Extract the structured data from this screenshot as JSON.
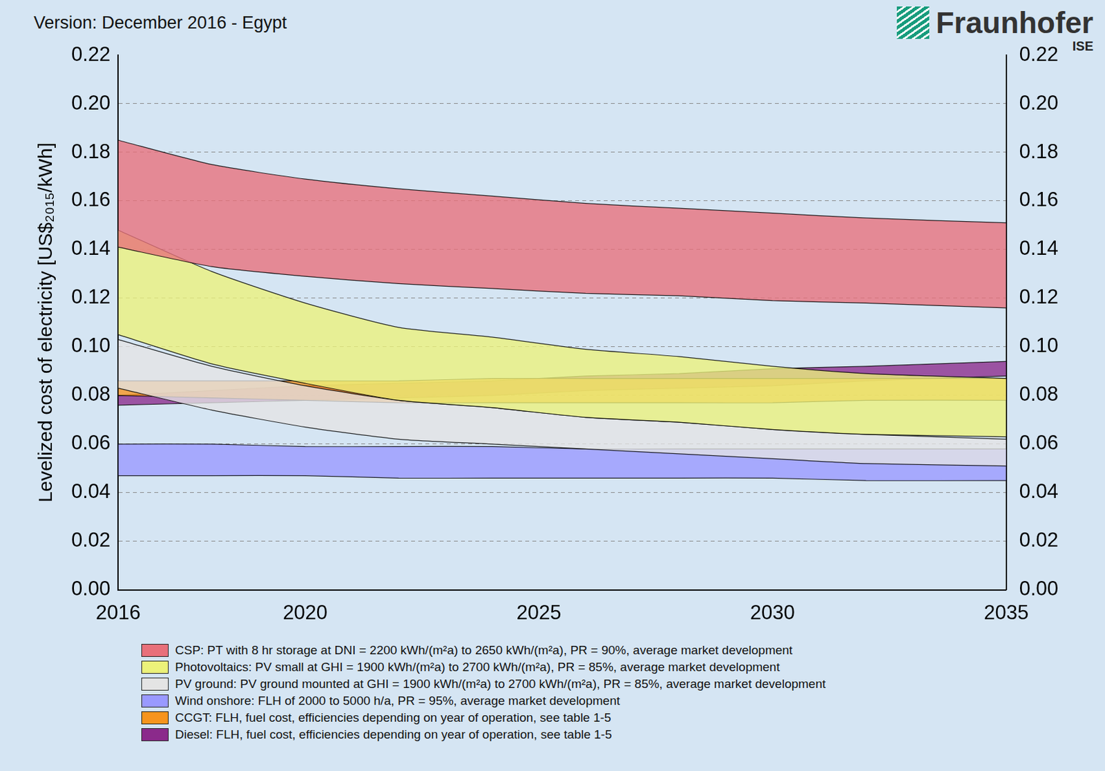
{
  "chart_data": {
    "type": "area_range",
    "title": "Version: December 2016 - Egypt",
    "logo": "Fraunhofer",
    "logo_subtitle": "ISE",
    "y_label": "Levelized cost of electricity [US$₂₀₁₅/kWh]",
    "x": [
      2016,
      2018,
      2020,
      2022,
      2024,
      2026,
      2028,
      2030,
      2032,
      2035
    ],
    "xlim": [
      2016,
      2035
    ],
    "xticks": [
      2016,
      2020,
      2025,
      2030,
      2035
    ],
    "ylim": [
      0,
      0.22
    ],
    "yticks": [
      {
        "value": 0,
        "label": "0.00"
      },
      {
        "value": 0.02,
        "label": "0.02"
      },
      {
        "value": 0.04,
        "label": "0.04"
      },
      {
        "value": 0.06,
        "label": "0.06"
      },
      {
        "value": 0.08,
        "label": "0.08"
      },
      {
        "value": 0.1,
        "label": "0.10"
      },
      {
        "value": 0.12,
        "label": "0.12"
      },
      {
        "value": 0.14,
        "label": "0.14"
      },
      {
        "value": 0.16,
        "label": "0.16"
      },
      {
        "value": 0.18,
        "label": "0.18"
      },
      {
        "value": 0.2,
        "label": "0.20"
      },
      {
        "value": 0.22,
        "label": "0.22"
      }
    ],
    "y2lim": [
      0,
      0.22
    ],
    "y2ticks": [
      {
        "value": 0,
        "label": "0.00"
      },
      {
        "value": 0.02,
        "label": "0.02"
      },
      {
        "value": 0.04,
        "label": "0.04"
      },
      {
        "value": 0.06,
        "label": "0.06"
      },
      {
        "value": 0.08,
        "label": "0.08"
      },
      {
        "value": 0.1,
        "label": "0.10"
      },
      {
        "value": 0.12,
        "label": "0.12"
      },
      {
        "value": 0.14,
        "label": "0.14"
      },
      {
        "value": 0.16,
        "label": "0.16"
      },
      {
        "value": 0.18,
        "label": "0.18"
      },
      {
        "value": 0.2,
        "label": "0.20"
      },
      {
        "value": 0.22,
        "label": "0.22"
      }
    ],
    "grid": true,
    "legend": "bottom",
    "series": [
      {
        "name": "CSP: PT with 8 hr storage at DNI = 2200 kWh/(m²a) to 2650 kWh/(m²a), PR = 90%, average market development",
        "color": "#e8707a",
        "low": [
          0.141,
          0.133,
          0.129,
          0.126,
          0.124,
          0.122,
          0.121,
          0.119,
          0.118,
          0.116
        ],
        "high": [
          0.185,
          0.175,
          0.169,
          0.165,
          0.162,
          0.159,
          0.157,
          0.155,
          0.153,
          0.151
        ]
      },
      {
        "name": "Photovoltaics: PV small at GHI = 1900 kWh/(m²a) to 2700 kWh/(m²a), PR = 85%, average market development",
        "color": "#ecf27a",
        "low": [
          0.105,
          0.093,
          0.085,
          0.078,
          0.075,
          0.071,
          0.069,
          0.066,
          0.064,
          0.063
        ],
        "high": [
          0.148,
          0.131,
          0.118,
          0.108,
          0.104,
          0.099,
          0.096,
          0.092,
          0.089,
          0.087
        ]
      },
      {
        "name": "PV ground: PV ground mounted at GHI = 1900 kWh/(m²a) to 2700 kWh/(m²a), PR = 85%, average market development",
        "color": "#e4e4e4",
        "low": [
          0.083,
          0.074,
          0.067,
          0.062,
          0.06,
          0.058,
          0.056,
          0.054,
          0.052,
          0.051
        ],
        "high": [
          0.103,
          0.092,
          0.084,
          0.078,
          0.075,
          0.071,
          0.069,
          0.066,
          0.064,
          0.062
        ]
      },
      {
        "name": "Wind onshore: FLH of 2000 to 5000 h/a, PR = 95%, average market development",
        "color": "#9999ff",
        "low": [
          0.047,
          0.047,
          0.047,
          0.046,
          0.046,
          0.046,
          0.046,
          0.046,
          0.045,
          0.045
        ],
        "high": [
          0.06,
          0.06,
          0.059,
          0.059,
          0.059,
          0.058,
          0.058,
          0.058,
          0.058,
          0.058
        ]
      },
      {
        "name": "CCGT: FLH, fuel cost, efficiencies depending on year of operation, see table 1-5",
        "color": "#f7941d",
        "low": [
          0.08,
          0.079,
          0.078,
          0.077,
          0.077,
          0.077,
          0.077,
          0.077,
          0.078,
          0.078
        ],
        "high": [
          0.086,
          0.086,
          0.086,
          0.086,
          0.087,
          0.087,
          0.087,
          0.087,
          0.087,
          0.087
        ]
      },
      {
        "name": "Diesel: FLH, fuel cost, efficiencies depending on year of operation, see table 1-5",
        "color": "#8b2a8b",
        "low": [
          0.076,
          0.077,
          0.078,
          0.079,
          0.08,
          0.082,
          0.083,
          0.084,
          0.086,
          0.088
        ],
        "high": [
          0.08,
          0.082,
          0.084,
          0.085,
          0.086,
          0.088,
          0.089,
          0.091,
          0.092,
          0.094
        ]
      }
    ]
  }
}
